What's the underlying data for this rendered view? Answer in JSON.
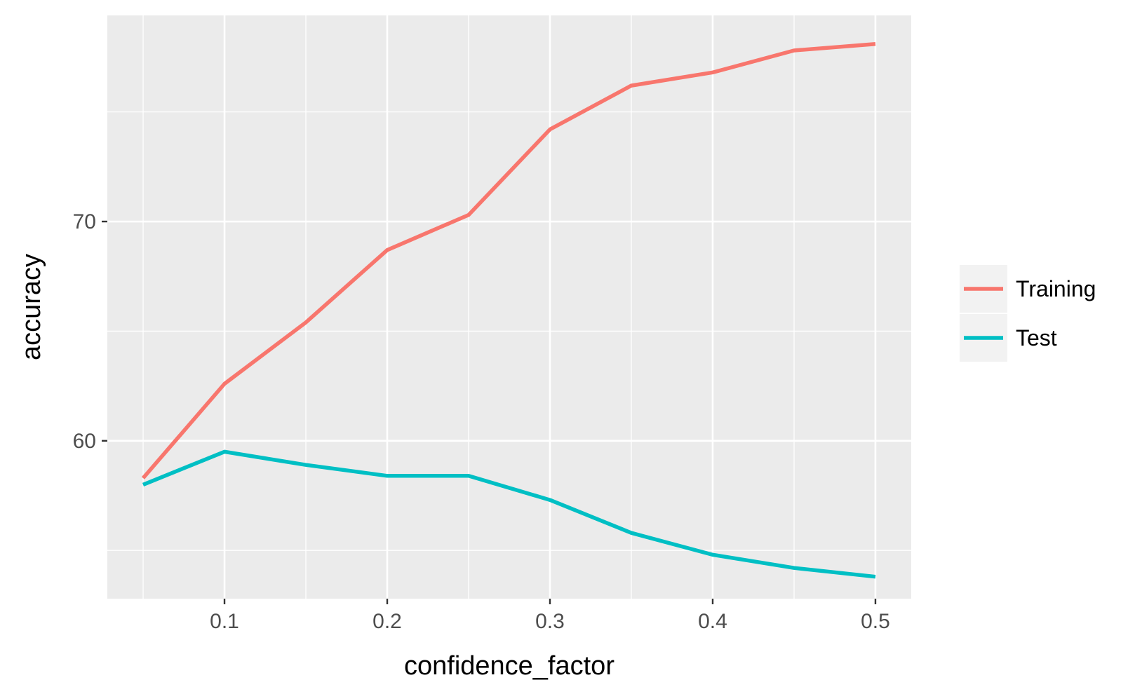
{
  "chart_data": {
    "type": "line",
    "title": "",
    "xlabel": "confidence_factor",
    "ylabel": "accuracy",
    "x": [
      0.05,
      0.1,
      0.15,
      0.2,
      0.25,
      0.3,
      0.35,
      0.4,
      0.45,
      0.5
    ],
    "series": [
      {
        "name": "Training",
        "color": "#F8766D",
        "values": [
          58.3,
          62.6,
          65.4,
          68.7,
          70.3,
          74.2,
          76.2,
          76.8,
          77.8,
          78.1
        ]
      },
      {
        "name": "Test",
        "color": "#00BFC4",
        "values": [
          58.0,
          59.5,
          58.9,
          58.4,
          58.4,
          57.3,
          55.8,
          54.8,
          54.2,
          53.8
        ]
      }
    ],
    "xlim": [
      0.028,
      0.522
    ],
    "ylim": [
      52.8,
      79.4
    ],
    "xticks": [
      0.1,
      0.2,
      0.3,
      0.4,
      0.5
    ],
    "xtick_labels": [
      "0.1",
      "0.2",
      "0.3",
      "0.4",
      "0.5"
    ],
    "yticks": [
      60,
      70
    ],
    "ytick_labels": [
      "60",
      "70"
    ],
    "grid": true,
    "legend_position": "right",
    "panel_background": "#EBEBEB"
  }
}
